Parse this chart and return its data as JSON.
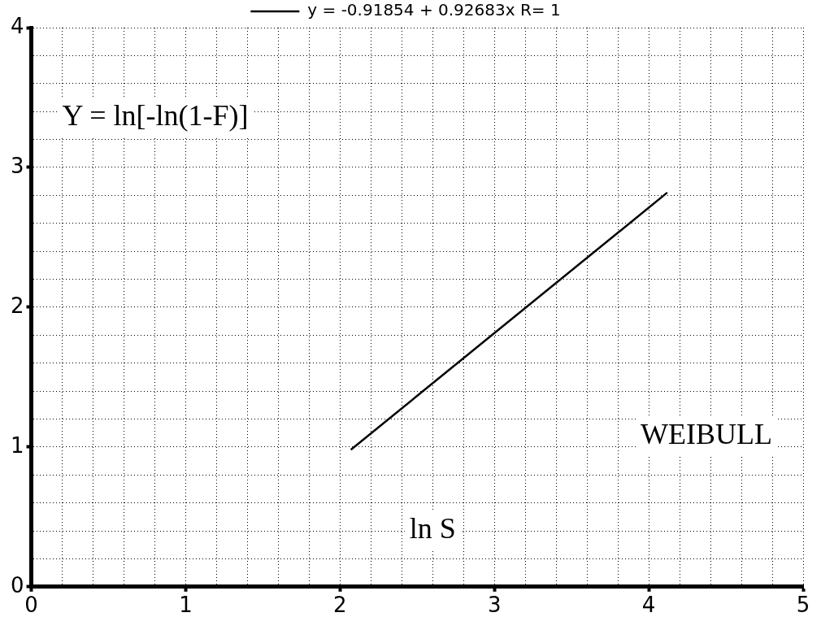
{
  "chart_data": {
    "type": "line",
    "xlabel": "ln S",
    "ylabel": "Y = ln[-ln(1-F)]",
    "annotations": [
      "WEIBULL"
    ],
    "series": [
      {
        "name": "y = -0.91854 + 0.92683x R= 1",
        "color": "#000000",
        "x": [
          2.07,
          4.12
        ],
        "values": [
          0.98,
          2.82
        ]
      }
    ],
    "xlim": [
      0,
      5
    ],
    "ylim": [
      0,
      4
    ],
    "xticks": [
      0,
      {
        "value": 0.2,
        "label": null
      },
      {
        "value": 0.4,
        "label": null
      },
      {
        "value": 0.6,
        "label": null
      },
      {
        "value": 0.8,
        "label": null
      },
      1,
      {
        "value": 1.2,
        "label": null
      },
      {
        "value": 1.4,
        "label": null
      },
      {
        "value": 1.6,
        "label": null
      },
      {
        "value": 1.8,
        "label": null
      },
      2,
      {
        "value": 2.2,
        "label": null
      },
      {
        "value": 2.4,
        "label": null
      },
      {
        "value": 2.6,
        "label": null
      },
      {
        "value": 2.8,
        "label": null
      },
      3,
      {
        "value": 3.2,
        "label": null
      },
      {
        "value": 3.4,
        "label": null
      },
      {
        "value": 3.6,
        "label": null
      },
      {
        "value": 3.8,
        "label": null
      },
      4,
      {
        "value": 4.2,
        "label": null
      },
      {
        "value": 4.4,
        "label": null
      },
      {
        "value": 4.6,
        "label": null
      },
      {
        "value": 4.8,
        "label": null
      },
      5
    ],
    "yticks": [
      0,
      {
        "value": 0.2,
        "label": null
      },
      {
        "value": 0.4,
        "label": null
      },
      {
        "value": 0.6,
        "label": null
      },
      {
        "value": 0.8,
        "label": null
      },
      1,
      {
        "value": 1.2,
        "label": null
      },
      {
        "value": 1.4,
        "label": null
      },
      {
        "value": 1.6,
        "label": null
      },
      {
        "value": 1.8,
        "label": null
      },
      2,
      {
        "value": 2.2,
        "label": null
      },
      {
        "value": 2.4,
        "label": null
      },
      {
        "value": 2.6,
        "label": null
      },
      {
        "value": 2.8,
        "label": null
      },
      3,
      {
        "value": 3.2,
        "label": null
      },
      {
        "value": 3.4,
        "label": null
      },
      {
        "value": 3.6,
        "label": null
      },
      {
        "value": 3.8,
        "label": null
      },
      4
    ],
    "grid": true,
    "legend": "top",
    "marker": "none",
    "line_style": "solid"
  }
}
